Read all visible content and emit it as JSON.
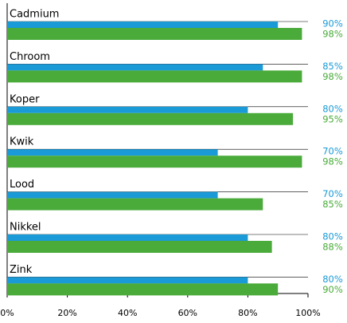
{
  "chart_data": {
    "type": "hbar",
    "categories": [
      "Cadmium",
      "Chroom",
      "Koper",
      "Kwik",
      "Lood",
      "Nikkel",
      "Zink"
    ],
    "series": [
      {
        "color": "#1a9ad6",
        "values": [
          90,
          85,
          80,
          70,
          70,
          80,
          80
        ],
        "value_labels": [
          "90%",
          "85%",
          "80%",
          "70%",
          "70%",
          "80%",
          "80%"
        ]
      },
      {
        "color": "#4aab3b",
        "values": [
          98,
          98,
          95,
          98,
          85,
          88,
          90
        ],
        "value_labels": [
          "98%",
          "98%",
          "95%",
          "98%",
          "85%",
          "88%",
          "90%"
        ]
      }
    ],
    "xlim": [
      0,
      100
    ],
    "xticks": [
      {
        "value": 0,
        "label": "0%"
      },
      {
        "value": 20,
        "label": "20%"
      },
      {
        "value": 40,
        "label": "40%"
      },
      {
        "value": 60,
        "label": "60%"
      },
      {
        "value": 80,
        "label": "80%"
      },
      {
        "value": 100,
        "label": "100%"
      }
    ]
  }
}
